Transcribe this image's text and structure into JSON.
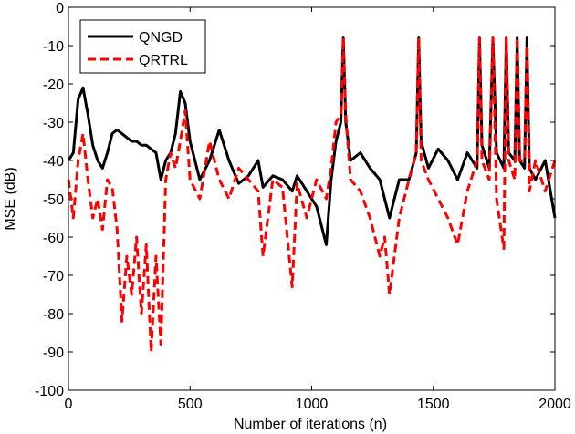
{
  "chart_data": {
    "type": "line",
    "xlabel": "Number of iterations (n)",
    "ylabel": "MSE (dB)",
    "xlim": [
      0,
      2000
    ],
    "ylim": [
      -100,
      0
    ],
    "xticks": [
      0,
      500,
      1000,
      1500,
      2000
    ],
    "yticks": [
      -100,
      -90,
      -80,
      -70,
      -60,
      -50,
      -40,
      -30,
      -20,
      -10,
      0
    ],
    "legend": "upper left",
    "x": [
      0,
      20,
      40,
      60,
      80,
      100,
      120,
      140,
      160,
      180,
      200,
      220,
      240,
      260,
      280,
      300,
      320,
      340,
      360,
      380,
      400,
      420,
      440,
      460,
      480,
      500,
      540,
      580,
      620,
      660,
      700,
      740,
      780,
      800,
      840,
      880,
      920,
      940,
      980,
      1020,
      1060,
      1080,
      1100,
      1120,
      1130,
      1140,
      1160,
      1200,
      1240,
      1280,
      1300,
      1320,
      1360,
      1400,
      1430,
      1440,
      1450,
      1480,
      1520,
      1560,
      1600,
      1640,
      1680,
      1690,
      1700,
      1730,
      1745,
      1760,
      1790,
      1800,
      1810,
      1835,
      1845,
      1855,
      1875,
      1885,
      1895,
      1920,
      1960,
      2000
    ],
    "series": [
      {
        "name": "QNGD",
        "color": "#000000",
        "dash": false,
        "values": [
          -40,
          -38,
          -24,
          -21,
          -28,
          -36,
          -40,
          -42,
          -38,
          -33,
          -32,
          -33,
          -34,
          -35,
          -35,
          -36,
          -36,
          -37,
          -38,
          -45,
          -40,
          -38,
          -33,
          -22,
          -25,
          -35,
          -45,
          -40,
          -32,
          -40,
          -46,
          -44,
          -40,
          -47,
          -44,
          -45,
          -48,
          -44,
          -48,
          -52,
          -62,
          -45,
          -35,
          -30,
          -8,
          -30,
          -40,
          -38,
          -42,
          -45,
          -50,
          -55,
          -45,
          -45,
          -38,
          -8,
          -35,
          -42,
          -37,
          -40,
          -45,
          -38,
          -42,
          -8,
          -36,
          -42,
          -8,
          -38,
          -42,
          -8,
          -38,
          -40,
          -8,
          -40,
          -42,
          -8,
          -42,
          -45,
          -40,
          -55
        ]
      },
      {
        "name": "QRTRL",
        "color": "#ff0000",
        "dash": true,
        "values": [
          -45,
          -55,
          -40,
          -33,
          -45,
          -55,
          -50,
          -58,
          -45,
          -47,
          -58,
          -82,
          -65,
          -75,
          -60,
          -80,
          -62,
          -90,
          -65,
          -88,
          -45,
          -38,
          -42,
          -35,
          -27,
          -45,
          -50,
          -35,
          -45,
          -50,
          -42,
          -45,
          -48,
          -65,
          -45,
          -47,
          -73,
          -46,
          -55,
          -45,
          -50,
          -42,
          -30,
          -28,
          -8,
          -28,
          -45,
          -48,
          -55,
          -65,
          -60,
          -75,
          -55,
          -45,
          -38,
          -8,
          -40,
          -45,
          -50,
          -55,
          -62,
          -48,
          -40,
          -8,
          -40,
          -45,
          -8,
          -50,
          -63,
          -8,
          -40,
          -45,
          -8,
          -40,
          -40,
          -10,
          -48,
          -40,
          -48,
          -40
        ]
      }
    ]
  }
}
